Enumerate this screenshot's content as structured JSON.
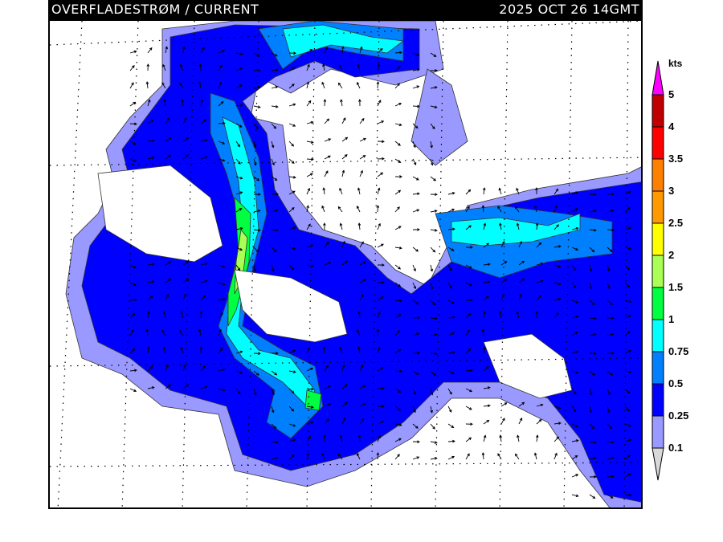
{
  "header": {
    "title": "OVERFLADESTRØM / CURRENT",
    "valid_time": "2025 OCT 26 14GMT"
  },
  "legend": {
    "unit": "kts",
    "labels": [
      "5",
      "4",
      "3.5",
      "3",
      "2.5",
      "2",
      "1.5",
      "1",
      "0.75",
      "0.5",
      "0.25",
      "0.1"
    ],
    "colors": {
      "above_5": "#ff00ff",
      "4-5": "#c00000",
      "3.5-4": "#ff0000",
      "3-3.5": "#ff8000",
      "2.5-3": "#ff9900",
      "2-2.5": "#ffff00",
      "1.5-2": "#aaff55",
      "1-1.5": "#00ff40",
      "0.75-1": "#00ffff",
      "0.5-0.75": "#0080ff",
      "0.25-0.5": "#0000ff",
      "0.1-0.25": "#9999ff",
      "below_0.1": "#d8d8d8"
    }
  },
  "map": {
    "field": "surface current speed with direction arrows",
    "land_color": "#ffffff",
    "grid": "dotted lat/lon"
  }
}
